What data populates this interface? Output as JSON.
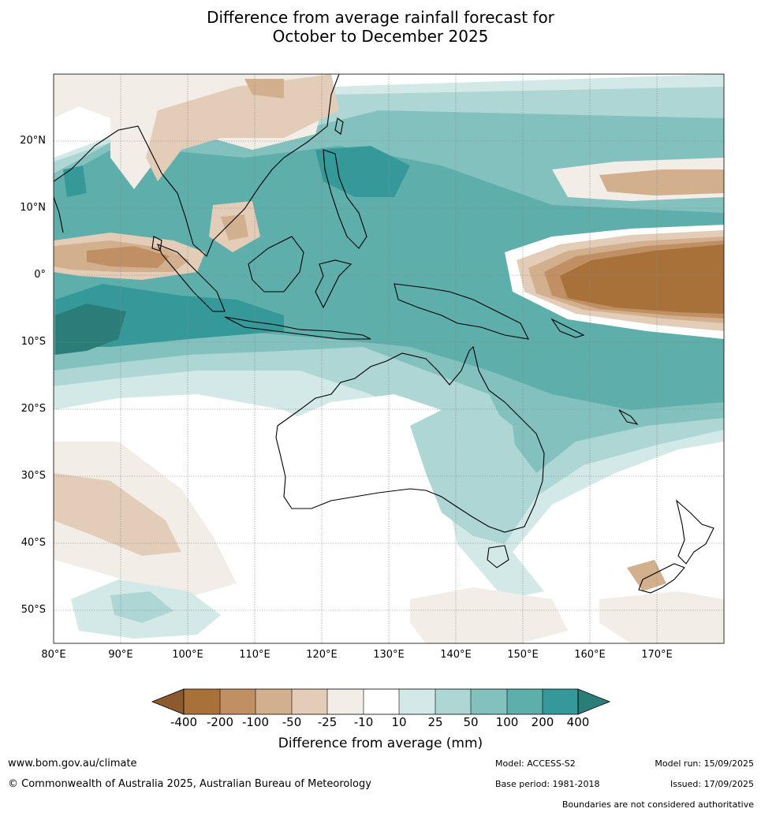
{
  "title": {
    "line1": "Difference from average rainfall forecast for",
    "line2": "October to December 2025"
  },
  "map": {
    "region_lon": [
      80,
      180
    ],
    "region_lat": [
      -55,
      30
    ],
    "latitude_labels": [
      "20°N",
      "10°N",
      "0°",
      "10°S",
      "20°S",
      "30°S",
      "40°S",
      "50°S"
    ],
    "longitude_labels": [
      "80°E",
      "90°E",
      "100°E",
      "110°E",
      "120°E",
      "130°E",
      "140°E",
      "150°E",
      "160°E",
      "170°E"
    ],
    "gridlines": true
  },
  "legend": {
    "title": "Difference from average (mm)",
    "tick_labels": [
      "-400",
      "-200",
      "-100",
      "-50",
      "-25",
      "-10",
      "10",
      "25",
      "50",
      "100",
      "200",
      "400"
    ],
    "extend_low_color": "#8c5a2c",
    "extend_high_color": "#2a7d78",
    "colors": [
      "#a9713a",
      "#c09064",
      "#d2b08e",
      "#e3cdb8",
      "#f2ede6",
      "#ffffff",
      "#d3e9e7",
      "#add6d4",
      "#83c1bf",
      "#5eaeab",
      "#35999a"
    ]
  },
  "footer": {
    "website": "www.bom.gov.au/climate",
    "copyright": "© Commonwealth of Australia 2025, Australian Bureau of Meteorology",
    "model": "Model: ACCESS-S2",
    "base_period": "Base period: 1981-2018",
    "model_run": "Model run: 15/09/2025",
    "issued": "Issued: 17/09/2025",
    "disclaimer": "Boundaries are not considered authoritative"
  }
}
